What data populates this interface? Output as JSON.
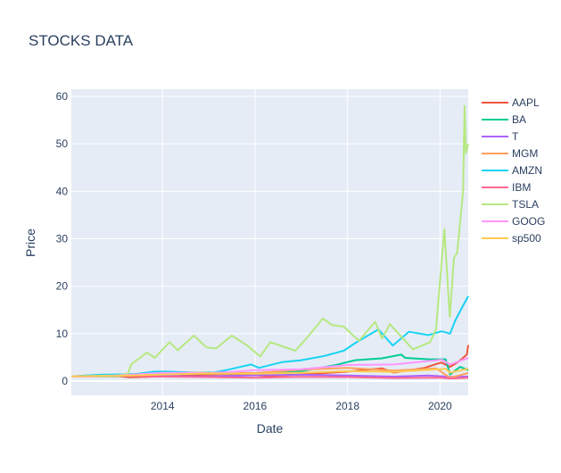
{
  "chart_data": {
    "type": "line",
    "title": "STOCKS DATA",
    "xlabel": "Date",
    "ylabel": "Price",
    "x_range": [
      "2012-01-12",
      "2020-08-11"
    ],
    "x_ticks": [
      {
        "date": "2014-01-01",
        "label": "2014"
      },
      {
        "date": "2016-01-01",
        "label": "2016"
      },
      {
        "date": "2018-01-01",
        "label": "2018"
      },
      {
        "date": "2020-01-01",
        "label": "2020"
      }
    ],
    "ylim": [
      -3,
      61.5
    ],
    "y_ticks": [
      0,
      10,
      20,
      30,
      40,
      50,
      60
    ],
    "grid": true,
    "legend_position": "right",
    "plot_background": "#e5ecf6",
    "series": [
      {
        "name": "AAPL",
        "color": "#ef553b",
        "points": [
          [
            "2012-01-12",
            1.0
          ],
          [
            "2012-09-15",
            1.35
          ],
          [
            "2013-04-15",
            0.8
          ],
          [
            "2014-01-01",
            1.0
          ],
          [
            "2015-04-15",
            1.5
          ],
          [
            "2016-05-01",
            1.1
          ],
          [
            "2017-01-01",
            1.4
          ],
          [
            "2018-01-01",
            2.0
          ],
          [
            "2018-10-01",
            2.7
          ],
          [
            "2019-01-01",
            1.8
          ],
          [
            "2019-09-01",
            2.8
          ],
          [
            "2019-12-01",
            3.6
          ],
          [
            "2020-01-15",
            3.9
          ],
          [
            "2020-03-20",
            3.0
          ],
          [
            "2020-05-15",
            3.9
          ],
          [
            "2020-07-01",
            4.9
          ],
          [
            "2020-07-31",
            5.6
          ],
          [
            "2020-08-11",
            7.6
          ]
        ]
      },
      {
        "name": "BA",
        "color": "#00cc96",
        "points": [
          [
            "2012-01-12",
            1.0
          ],
          [
            "2013-01-01",
            1.0
          ],
          [
            "2014-01-01",
            1.7
          ],
          [
            "2015-01-01",
            1.8
          ],
          [
            "2016-01-01",
            1.7
          ],
          [
            "2017-01-01",
            2.1
          ],
          [
            "2017-10-01",
            3.4
          ],
          [
            "2018-03-01",
            4.4
          ],
          [
            "2018-10-01",
            4.8
          ],
          [
            "2019-03-01",
            5.6
          ],
          [
            "2019-04-01",
            4.9
          ],
          [
            "2019-10-01",
            4.6
          ],
          [
            "2020-02-15",
            4.6
          ],
          [
            "2020-03-20",
            1.4
          ],
          [
            "2020-06-08",
            3.0
          ],
          [
            "2020-08-11",
            2.3
          ]
        ]
      },
      {
        "name": "T",
        "color": "#ab63fa",
        "points": [
          [
            "2012-01-12",
            1.0
          ],
          [
            "2013-01-01",
            1.1
          ],
          [
            "2014-01-01",
            1.05
          ],
          [
            "2015-01-01",
            1.0
          ],
          [
            "2016-06-01",
            1.3
          ],
          [
            "2017-01-01",
            1.35
          ],
          [
            "2018-01-01",
            1.2
          ],
          [
            "2019-01-01",
            0.95
          ],
          [
            "2019-10-01",
            1.2
          ],
          [
            "2020-03-20",
            0.9
          ],
          [
            "2020-08-11",
            0.97
          ]
        ]
      },
      {
        "name": "MGM",
        "color": "#ffa15a",
        "points": [
          [
            "2012-01-12",
            1.0
          ],
          [
            "2013-01-01",
            1.1
          ],
          [
            "2014-01-01",
            2.0
          ],
          [
            "2015-01-01",
            1.7
          ],
          [
            "2016-01-01",
            1.7
          ],
          [
            "2017-01-01",
            2.4
          ],
          [
            "2018-01-01",
            2.8
          ],
          [
            "2019-01-01",
            2.2
          ],
          [
            "2019-12-01",
            2.7
          ],
          [
            "2020-03-20",
            0.7
          ],
          [
            "2020-08-11",
            1.7
          ]
        ]
      },
      {
        "name": "AMZN",
        "color": "#19d3f3",
        "points": [
          [
            "2012-01-12",
            1.0
          ],
          [
            "2012-09-01",
            1.35
          ],
          [
            "2013-06-01",
            1.5
          ],
          [
            "2013-11-01",
            2.0
          ],
          [
            "2014-03-01",
            2.0
          ],
          [
            "2014-08-01",
            1.8
          ],
          [
            "2015-01-01",
            1.6
          ],
          [
            "2015-06-01",
            2.4
          ],
          [
            "2015-12-01",
            3.5
          ],
          [
            "2016-02-01",
            2.8
          ],
          [
            "2016-08-01",
            4.0
          ],
          [
            "2017-01-01",
            4.4
          ],
          [
            "2017-07-01",
            5.3
          ],
          [
            "2017-12-01",
            6.4
          ],
          [
            "2018-03-01",
            8.0
          ],
          [
            "2018-09-01",
            10.9
          ],
          [
            "2018-12-24",
            7.5
          ],
          [
            "2019-05-01",
            10.4
          ],
          [
            "2019-10-01",
            9.7
          ],
          [
            "2020-01-15",
            10.5
          ],
          [
            "2020-03-20",
            10.0
          ],
          [
            "2020-05-01",
            12.8
          ],
          [
            "2020-07-01",
            15.9
          ],
          [
            "2020-08-11",
            17.9
          ]
        ]
      },
      {
        "name": "IBM",
        "color": "#ff6692",
        "points": [
          [
            "2012-01-12",
            1.0
          ],
          [
            "2013-03-01",
            1.1
          ],
          [
            "2014-01-01",
            0.95
          ],
          [
            "2015-01-01",
            0.85
          ],
          [
            "2016-01-01",
            0.7
          ],
          [
            "2017-01-01",
            0.9
          ],
          [
            "2018-01-01",
            0.85
          ],
          [
            "2019-01-01",
            0.65
          ],
          [
            "2020-01-01",
            0.75
          ],
          [
            "2020-03-20",
            0.55
          ],
          [
            "2020-08-11",
            0.7
          ]
        ]
      },
      {
        "name": "TSLA",
        "color": "#b6e880",
        "points": [
          [
            "2012-01-12",
            1.0
          ],
          [
            "2012-06-01",
            1.1
          ],
          [
            "2013-01-01",
            1.2
          ],
          [
            "2013-04-01",
            1.5
          ],
          [
            "2013-05-01",
            3.6
          ],
          [
            "2013-09-01",
            6.0
          ],
          [
            "2013-11-01",
            4.9
          ],
          [
            "2014-02-25",
            8.2
          ],
          [
            "2014-05-01",
            6.5
          ],
          [
            "2014-09-05",
            9.6
          ],
          [
            "2014-12-15",
            7.1
          ],
          [
            "2015-03-01",
            6.9
          ],
          [
            "2015-07-01",
            9.6
          ],
          [
            "2015-11-01",
            7.5
          ],
          [
            "2016-02-10",
            5.2
          ],
          [
            "2016-05-01",
            8.2
          ],
          [
            "2016-11-15",
            6.4
          ],
          [
            "2017-03-01",
            9.6
          ],
          [
            "2017-06-20",
            13.2
          ],
          [
            "2017-09-01",
            11.8
          ],
          [
            "2017-12-01",
            11.5
          ],
          [
            "2018-04-01",
            8.5
          ],
          [
            "2018-08-07",
            12.5
          ],
          [
            "2018-10-01",
            9.0
          ],
          [
            "2018-12-01",
            12.0
          ],
          [
            "2019-06-01",
            6.7
          ],
          [
            "2019-10-15",
            8.2
          ],
          [
            "2019-12-01",
            11.0
          ],
          [
            "2020-02-04",
            32.0
          ],
          [
            "2020-03-18",
            13.5
          ],
          [
            "2020-04-20",
            26.0
          ],
          [
            "2020-05-15",
            27.0
          ],
          [
            "2020-06-10",
            34.0
          ],
          [
            "2020-07-01",
            40.0
          ],
          [
            "2020-07-13",
            58.0
          ],
          [
            "2020-07-24",
            48.0
          ],
          [
            "2020-08-11",
            50.0
          ]
        ]
      },
      {
        "name": "GOOG",
        "color": "#ff97ff",
        "points": [
          [
            "2012-01-12",
            1.0
          ],
          [
            "2012-06-01",
            0.95
          ],
          [
            "2013-01-01",
            1.15
          ],
          [
            "2014-01-01",
            1.75
          ],
          [
            "2015-01-01",
            1.7
          ],
          [
            "2015-08-01",
            2.0
          ],
          [
            "2016-01-01",
            2.3
          ],
          [
            "2017-01-01",
            2.5
          ],
          [
            "2018-01-01",
            3.4
          ],
          [
            "2019-01-01",
            3.5
          ],
          [
            "2020-01-15",
            4.5
          ],
          [
            "2020-03-20",
            3.5
          ],
          [
            "2020-08-11",
            4.9
          ]
        ]
      },
      {
        "name": "sp500",
        "color": "#fecb52",
        "points": [
          [
            "2012-01-12",
            1.0
          ],
          [
            "2013-01-01",
            1.1
          ],
          [
            "2014-01-01",
            1.4
          ],
          [
            "2015-01-01",
            1.6
          ],
          [
            "2016-01-01",
            1.55
          ],
          [
            "2017-01-01",
            1.75
          ],
          [
            "2018-01-01",
            2.1
          ],
          [
            "2019-01-01",
            1.95
          ],
          [
            "2020-02-15",
            2.6
          ],
          [
            "2020-03-20",
            1.8
          ],
          [
            "2020-08-11",
            2.6
          ]
        ]
      }
    ]
  }
}
